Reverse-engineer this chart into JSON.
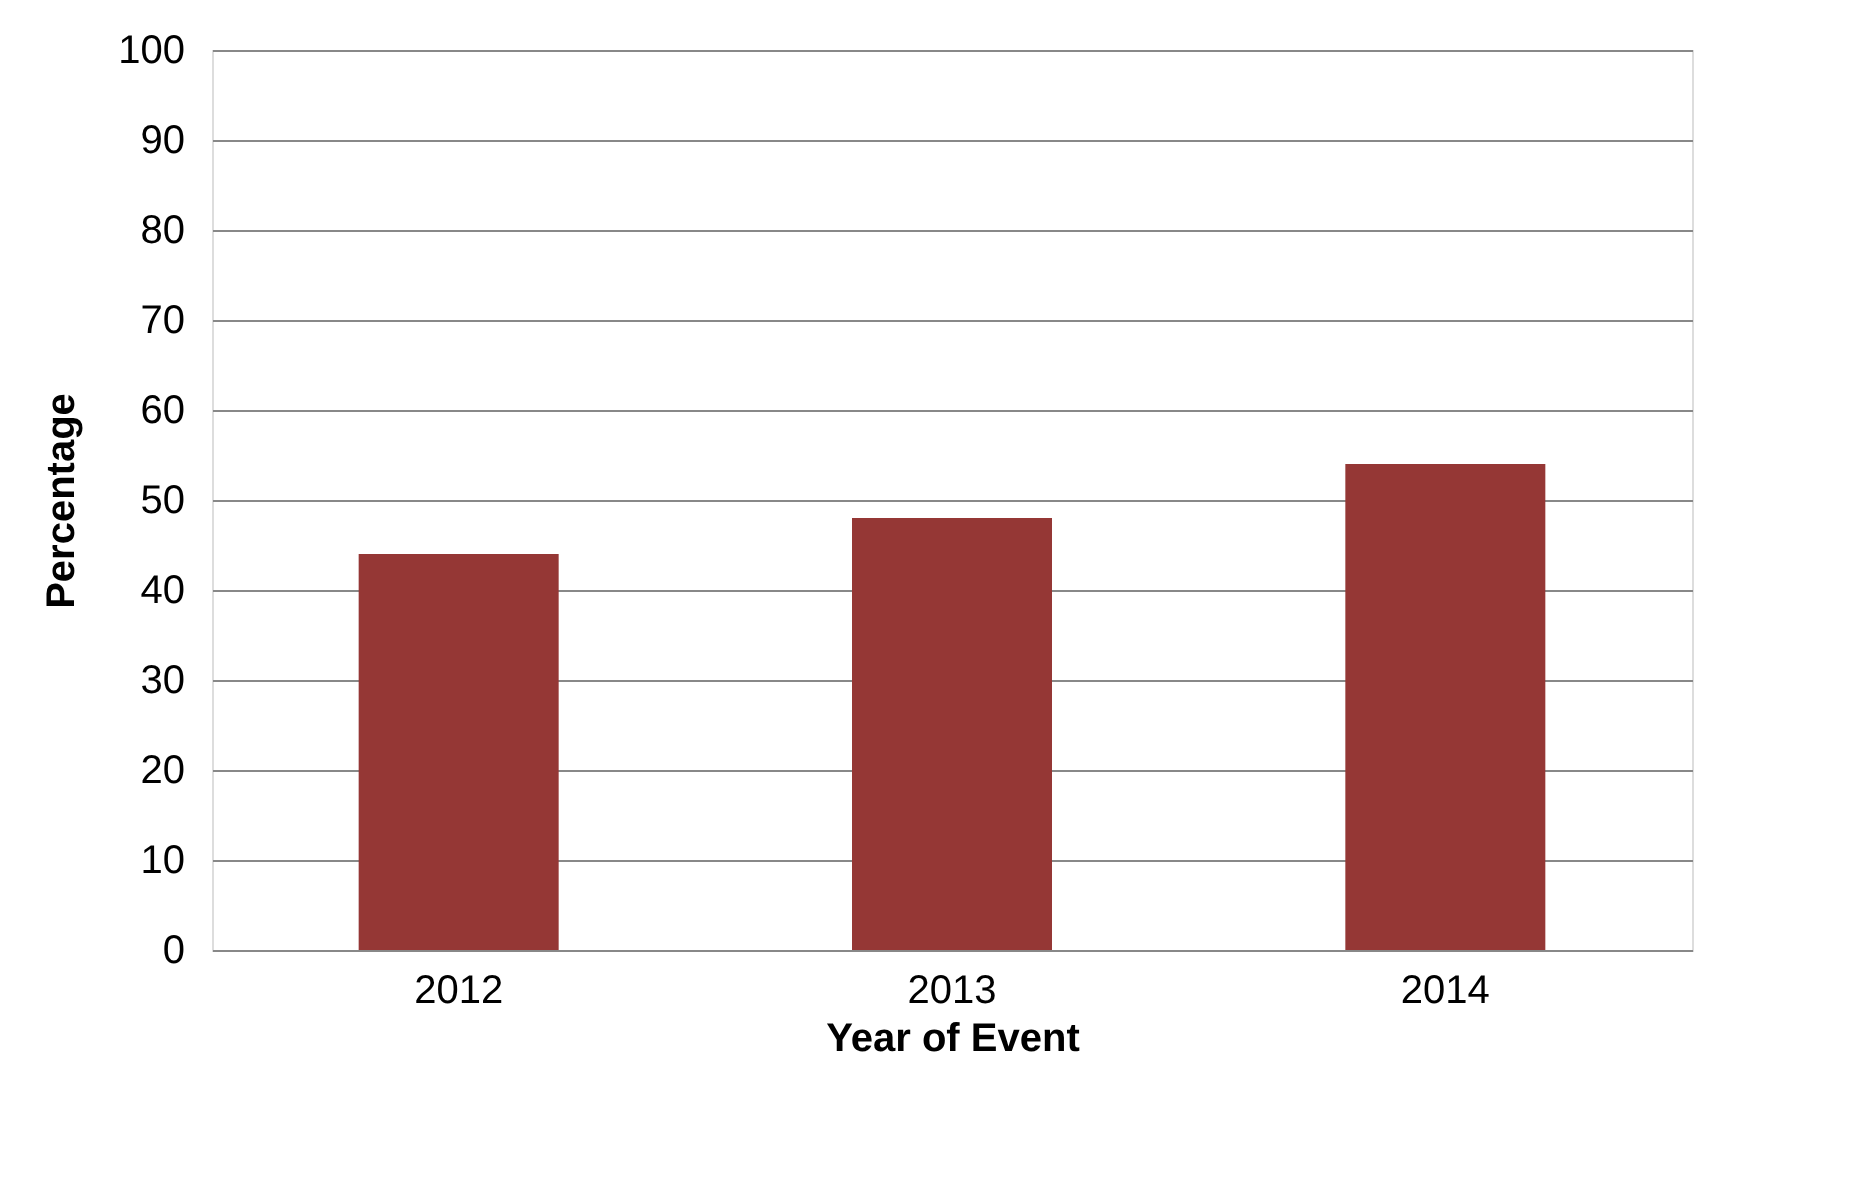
{
  "chart_data": {
    "type": "bar",
    "xlabel": "Year of Event",
    "ylabel": "Percentage",
    "categories": [
      "2012",
      "2013",
      "2014"
    ],
    "series": [
      {
        "color": "#953735",
        "values": [
          44,
          48,
          54
        ]
      }
    ],
    "ylim": [
      0,
      100
    ],
    "yticks": [
      0,
      10,
      20,
      30,
      40,
      50,
      60,
      70,
      80,
      90,
      100
    ],
    "grid": "y",
    "legend": false
  }
}
